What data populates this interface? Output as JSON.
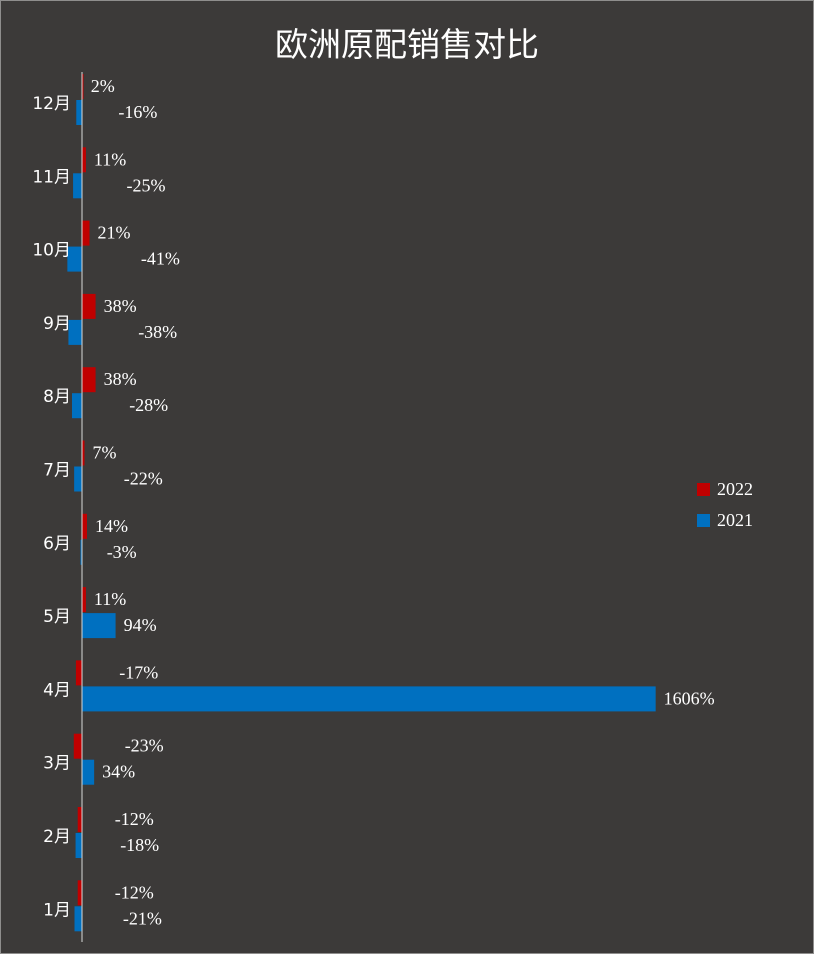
{
  "chart_data": {
    "type": "bar",
    "orientation": "horizontal",
    "title": "欧洲原配销售对比",
    "categories": [
      "1月",
      "2月",
      "3月",
      "4月",
      "5月",
      "6月",
      "7月",
      "8月",
      "9月",
      "10月",
      "11月",
      "12月"
    ],
    "series": [
      {
        "name": "2022",
        "color": "#c00000",
        "values": [
          -12,
          -12,
          -23,
          -17,
          11,
          14,
          7,
          38,
          38,
          21,
          11,
          2
        ],
        "labels": [
          "-12%",
          "-12%",
          "-23%",
          "-17%",
          "11%",
          "14%",
          "7%",
          "38%",
          "38%",
          "21%",
          "11%",
          "2%"
        ]
      },
      {
        "name": "2021",
        "color": "#0070c0",
        "values": [
          -21,
          -18,
          34,
          1606,
          94,
          -3,
          -22,
          -28,
          -38,
          -41,
          -25,
          -16
        ],
        "labels": [
          "-21%",
          "-18%",
          "34%",
          "1606%",
          "94%",
          "-3%",
          "-22%",
          "-28%",
          "-38%",
          "-41%",
          "-25%",
          "-16%"
        ]
      }
    ],
    "xlim": [
      -50,
      1606
    ],
    "grid": false,
    "legend_position": "right"
  }
}
